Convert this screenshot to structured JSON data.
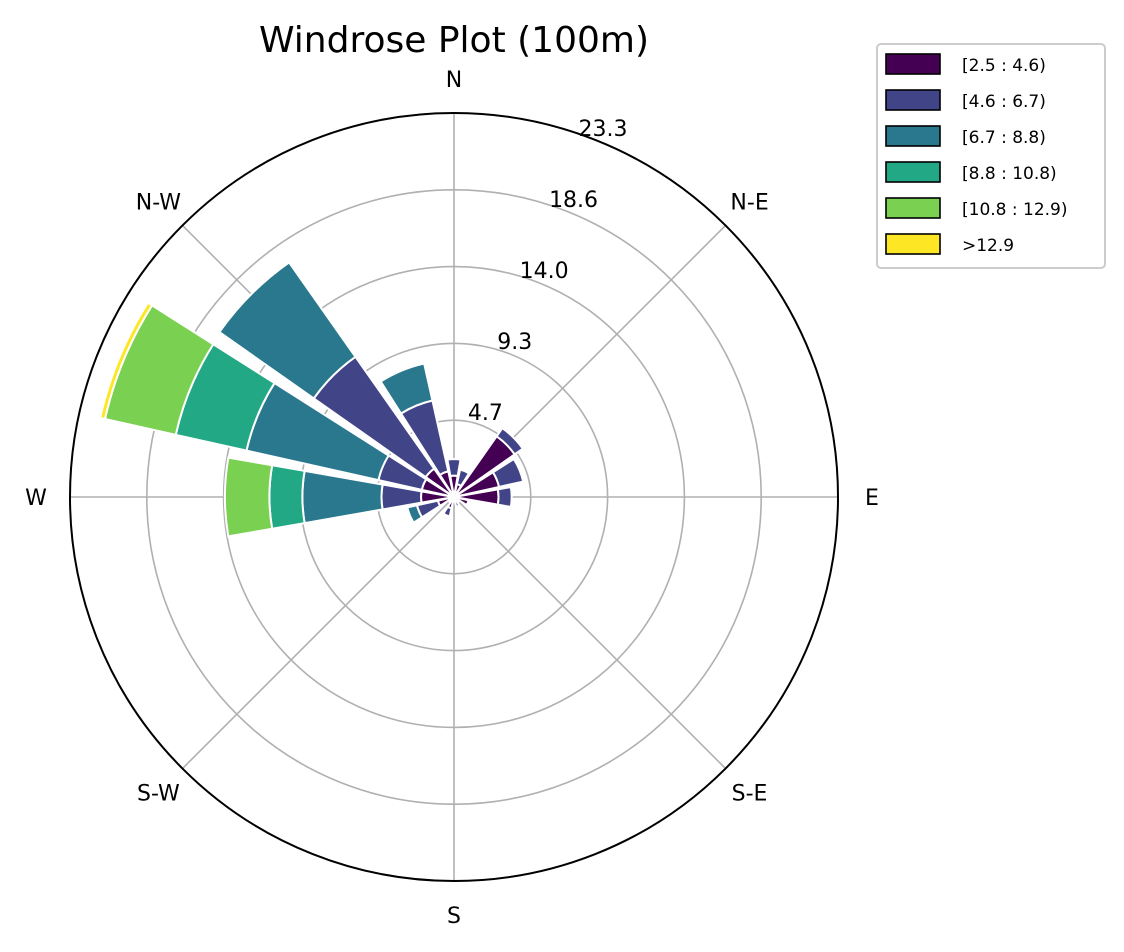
{
  "chart_data": {
    "type": "windrose",
    "title": "Windrose Plot (100m)",
    "directions": [
      "N",
      "N-E",
      "E",
      "S-E",
      "S",
      "S-W",
      "W",
      "N-W"
    ],
    "sector_count": 16,
    "sector_order": "clockwise from N, 22.5 degree bins",
    "r_ticks": [
      "4.7",
      "9.3",
      "14.0",
      "18.6",
      "23.3"
    ],
    "r_tick_values": [
      4.66,
      9.32,
      13.98,
      18.64,
      23.3
    ],
    "r_max": 23.3,
    "grid": true,
    "legend_position": "top-right, outside plot",
    "bins": [
      {
        "label": "[2.5 : 4.6)",
        "color": "#440154"
      },
      {
        "label": "[4.6 : 6.7)",
        "color": "#414487"
      },
      {
        "label": "[6.7 : 8.8)",
        "color": "#2a788e"
      },
      {
        "label": "[8.8 : 10.8)",
        "color": "#22a884"
      },
      {
        "label": "[10.8 : 12.9)",
        "color": "#7ad151"
      },
      {
        "label": ">12.9",
        "color": "#fde725"
      }
    ],
    "sectors": [
      {
        "direction": "N",
        "values": [
          1.3,
          1.0,
          0,
          0,
          0,
          0
        ]
      },
      {
        "direction": "NNE",
        "values": [
          0.8,
          0.9,
          0,
          0,
          0,
          0
        ]
      },
      {
        "direction": "NE",
        "values": [
          4.5,
          0.6,
          0,
          0,
          0,
          0
        ]
      },
      {
        "direction": "ENE",
        "values": [
          2.8,
          1.5,
          0,
          0,
          0,
          0
        ]
      },
      {
        "direction": "E",
        "values": [
          2.7,
          0.8,
          0,
          0,
          0,
          0
        ]
      },
      {
        "direction": "ESE",
        "values": [
          0.9,
          0,
          0,
          0,
          0,
          0
        ]
      },
      {
        "direction": "SE",
        "values": [
          0.4,
          0,
          0,
          0,
          0,
          0
        ]
      },
      {
        "direction": "SSE",
        "values": [
          0.3,
          0.3,
          0,
          0,
          0,
          0
        ]
      },
      {
        "direction": "S",
        "values": [
          0.1,
          0,
          0,
          0,
          0,
          0
        ]
      },
      {
        "direction": "SSW",
        "values": [
          0.7,
          0.5,
          0,
          0,
          0,
          0
        ]
      },
      {
        "direction": "SW",
        "values": [
          0.2,
          0.2,
          0,
          0,
          0,
          0
        ]
      },
      {
        "direction": "WSW",
        "values": [
          1.0,
          1.3,
          0.6,
          0,
          0,
          0
        ]
      },
      {
        "direction": "W",
        "values": [
          2.0,
          2.4,
          4.8,
          2.0,
          2.7,
          0
        ]
      },
      {
        "direction": "WNW",
        "values": [
          2.0,
          2.7,
          8.2,
          4.4,
          4.4,
          0.3
        ]
      },
      {
        "direction": "NW",
        "values": [
          2.1,
          8.3,
          7.0,
          0,
          0,
          0
        ]
      },
      {
        "direction": "NNW",
        "values": [
          1.6,
          4.4,
          2.3,
          0,
          0,
          0
        ]
      }
    ]
  }
}
